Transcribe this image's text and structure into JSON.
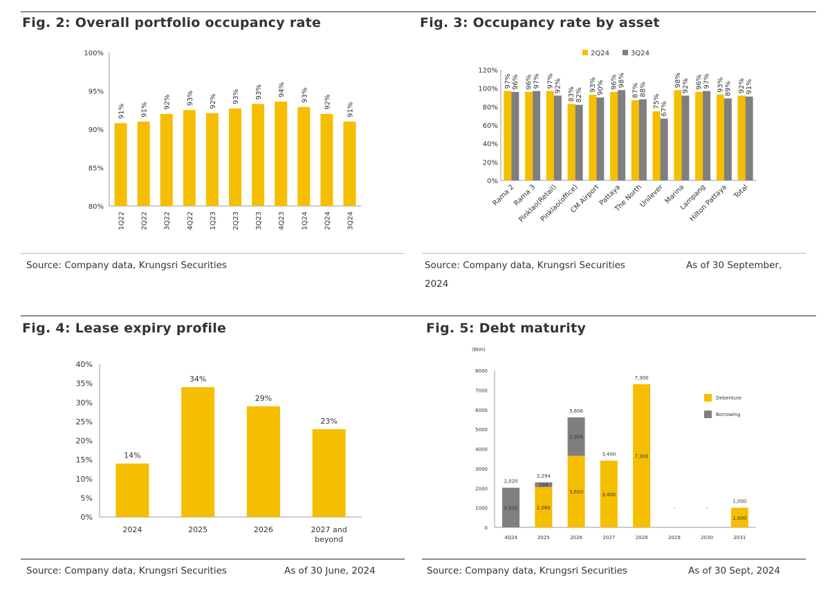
{
  "figures": [
    {
      "title": "Fig. 2: Overall portfolio occupancy rate",
      "source": "Source: Company data, Krungsri Securities",
      "note": ""
    },
    {
      "title": "Fig. 3: Occupancy rate by asset",
      "source": "Source: Company data, Krungsri Securities",
      "note": "As of 30 September,",
      "note2": "2024"
    },
    {
      "title": "Fig. 4: Lease expiry profile",
      "source": "Source: Company data, Krungsri Securities",
      "note": "As of 30 June, 2024"
    },
    {
      "title": "Fig. 5: Debt maturity",
      "source": "Source: Company data, Krungsri Securities",
      "note": "As of 30 Sept, 2024"
    }
  ],
  "colors": {
    "gold": "#F6BE00",
    "gray": "#7F7F7F",
    "axis": "#999999",
    "rule": "#8C8C8C"
  },
  "chart_data": [
    {
      "type": "bar",
      "title": "Fig. 2: Overall portfolio occupancy rate",
      "categories": [
        "1Q22",
        "2Q22",
        "3Q22",
        "4Q22",
        "1Q23",
        "2Q23",
        "3Q23",
        "4Q23",
        "1Q24",
        "2Q24",
        "3Q24"
      ],
      "values": [
        91,
        91,
        92,
        93,
        92,
        93,
        93,
        94,
        93,
        92,
        91
      ],
      "plot_values": [
        90.8,
        91.0,
        92.0,
        92.5,
        92.1,
        92.7,
        93.3,
        93.6,
        92.9,
        92.0,
        91.0
      ],
      "labels": [
        "91%",
        "91%",
        "92%",
        "93%",
        "92%",
        "93%",
        "93%",
        "94%",
        "93%",
        "92%",
        "91%"
      ],
      "yticks": [
        "100%",
        "95%",
        "90%",
        "85%",
        "80%"
      ],
      "ylim": [
        80,
        100
      ],
      "xlabel": "",
      "ylabel": ""
    },
    {
      "type": "bar",
      "title": "Fig. 3: Occupancy rate by asset",
      "categories": [
        "Rama 2",
        "Rama 3",
        "Pinklao(Retail)",
        "Pinklao(office)",
        "CM Airport",
        "Pattaya",
        "The North",
        "Unilever",
        "Marina",
        "Lampang",
        "Hilton Pattaya",
        "Total"
      ],
      "series": [
        {
          "name": "2Q24",
          "values": [
            97,
            96,
            97,
            83,
            93,
            96,
            87,
            75,
            98,
            96,
            93,
            92
          ],
          "labels": [
            "97%",
            "96%",
            "97%",
            "83%",
            "93%",
            "96%",
            "87%",
            "75%",
            "98%",
            "96%",
            "93%",
            "92%"
          ]
        },
        {
          "name": "3Q24",
          "values": [
            96,
            97,
            92,
            82,
            90,
            98,
            88,
            67,
            92,
            97,
            89,
            91
          ],
          "labels": [
            "96%",
            "97%",
            "92%",
            "82%",
            "90%",
            "98%",
            "88%",
            "67%",
            "92%",
            "97%",
            "89%",
            "91%"
          ]
        }
      ],
      "yticks": [
        "120%",
        "100%",
        "80%",
        "60%",
        "40%",
        "20%",
        "0%"
      ],
      "ylim": [
        0,
        120
      ],
      "legend": "top"
    },
    {
      "type": "bar",
      "title": "Fig. 4: Lease expiry profile",
      "categories": [
        "2024",
        "2025",
        "2026",
        "2027 and|beyond"
      ],
      "values": [
        14,
        34,
        29,
        23
      ],
      "labels": [
        "14%",
        "34%",
        "29%",
        "23%"
      ],
      "yticks": [
        "40%",
        "35%",
        "30%",
        "25%",
        "20%",
        "15%",
        "10%",
        "5%",
        "0%"
      ],
      "ylim": [
        0,
        40
      ]
    },
    {
      "type": "bar",
      "stacked": true,
      "title": "Fig. 5: Debt maturity",
      "unit": "(Btm)",
      "categories": [
        "4Q24",
        "2025",
        "2026",
        "2027",
        "2028",
        "2029",
        "2030",
        "2031"
      ],
      "series": [
        {
          "name": "Debenture",
          "values": [
            0,
            2060,
            3650,
            3400,
            7300,
            0,
            0,
            1000
          ],
          "labels": [
            "",
            "2,060",
            "3,650",
            "3,400",
            "7,300",
            "",
            "",
            "1,000"
          ]
        },
        {
          "name": "Borrowing",
          "values": [
            2020,
            234,
            1956,
            0,
            0,
            0,
            0,
            0
          ],
          "labels": [
            "2,020",
            "234",
            "1,956",
            "",
            "",
            "",
            "",
            ""
          ]
        }
      ],
      "totals": [
        "2,020",
        "2,294",
        "5,606",
        "3,400",
        "7,300",
        "-",
        "-",
        "1,000"
      ],
      "yticks": [
        "8000",
        "7000",
        "6000",
        "5000",
        "4000",
        "3000",
        "2000",
        "1000",
        "0"
      ],
      "ylim": [
        0,
        8000
      ],
      "legend": "right"
    }
  ]
}
